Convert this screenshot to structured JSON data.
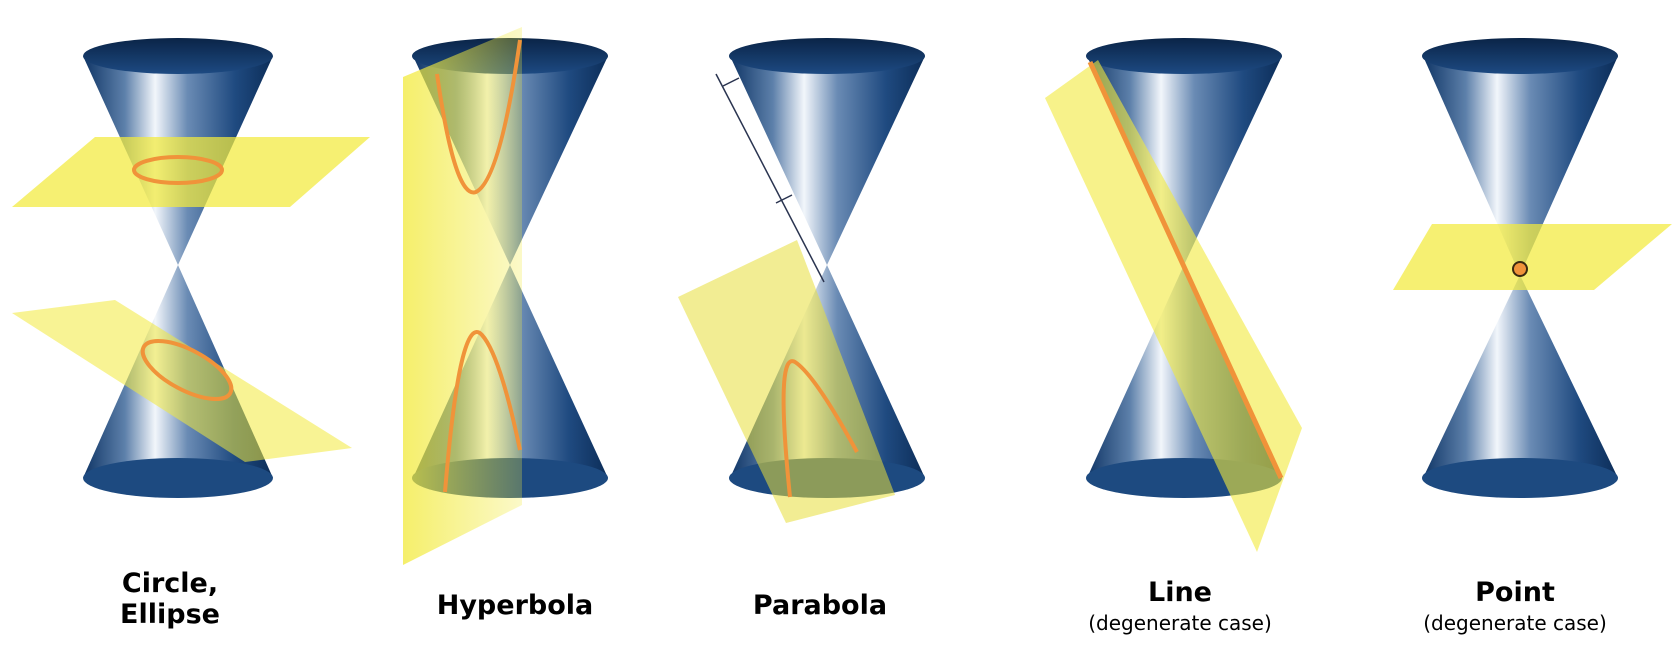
{
  "panels": [
    {
      "title": "Circle,",
      "title2": "Ellipse",
      "subtitle": ""
    },
    {
      "title": "Hyperbola",
      "subtitle": ""
    },
    {
      "title": "Parabola",
      "subtitle": ""
    },
    {
      "title": "Line",
      "subtitle": "(degenerate case)"
    },
    {
      "title": "Point",
      "subtitle": "(degenerate case)"
    }
  ],
  "colors": {
    "cone_dark": "#0f3566",
    "cone_light": "#f2f6fb",
    "plane": "#f2ea3c",
    "curve": "#f0933a",
    "guide_line": "#2a3450"
  }
}
